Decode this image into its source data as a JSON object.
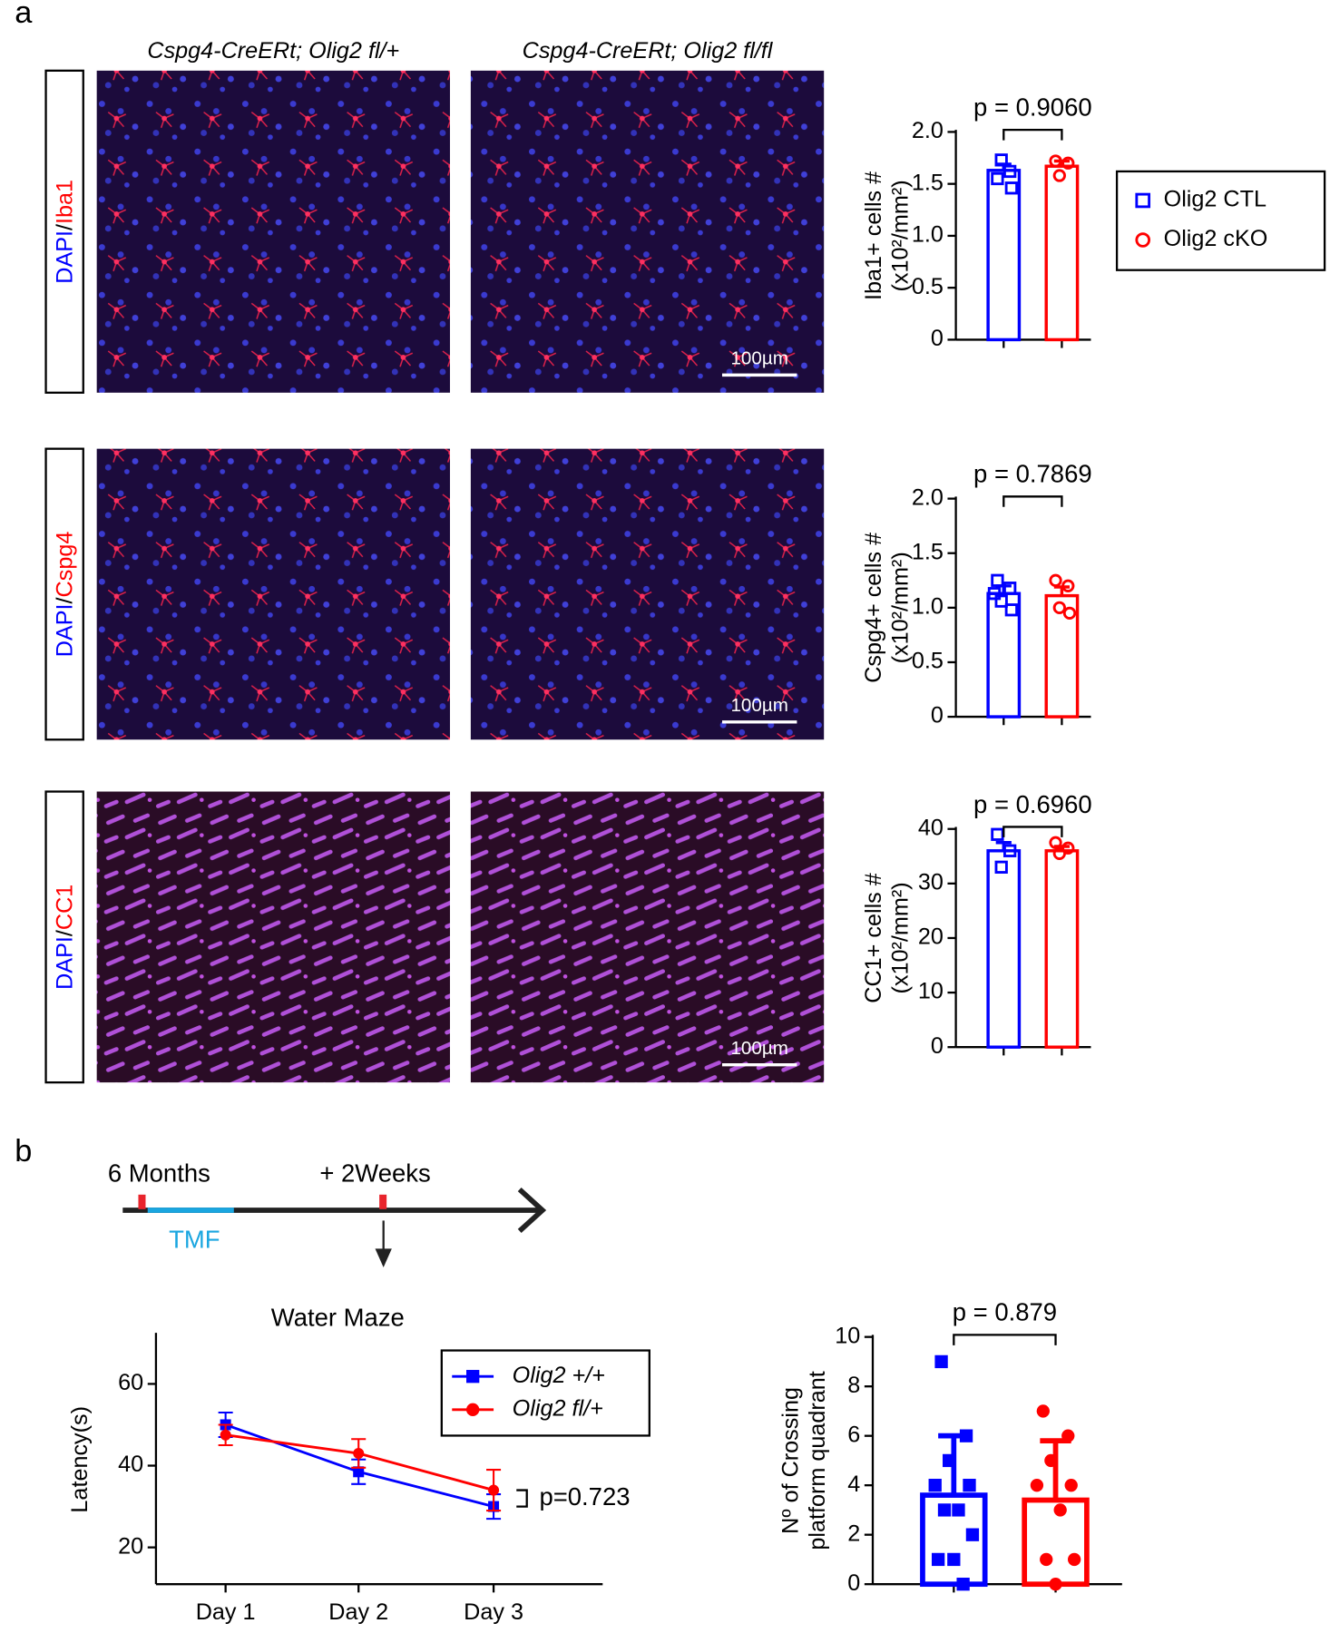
{
  "panel_labels": [
    "a",
    "b"
  ],
  "panel_a": {
    "columns": [
      "Cspg4-CreERt; Olig2 fl/+",
      "Cspg4-CreERt; Olig2 fl/fl"
    ],
    "rows": [
      [
        "DAPI",
        "/",
        "Iba1"
      ],
      [
        "DAPI",
        "/",
        "Cspg4"
      ],
      [
        "DAPI",
        "/",
        "CC1"
      ]
    ],
    "scale_bar": "100µm"
  },
  "timeline": {
    "start": "6 Months",
    "later": "+ 2Weeks",
    "treatment": "TMF"
  },
  "chart_data": [
    {
      "type": "bar",
      "ylabel": [
        "Iba1+ cells #",
        "(x10²/mm²)"
      ],
      "annotation": "p = 0.9060",
      "ylim": [
        0,
        2
      ],
      "yticks": [
        0,
        0.5,
        {
          "value": 1,
          "label": "1.0"
        },
        1.5,
        {
          "value": 2,
          "label": "2.0"
        }
      ],
      "legend": "right",
      "series": [
        {
          "name": "Olig2 CTL",
          "color": "#0000ff",
          "marker": "open-square",
          "values": [
            1.63
          ],
          "error": [
            0.06
          ],
          "points": [
            1.55,
            1.62,
            1.73,
            1.46
          ]
        },
        {
          "name": "Olig2 cKO",
          "color": "#ff0000",
          "marker": "open-circle",
          "values": [
            1.67
          ],
          "error": [
            0.05
          ],
          "points": [
            1.72,
            1.7,
            1.58
          ]
        }
      ]
    },
    {
      "type": "bar",
      "ylabel": [
        "Cspg4+ cells #",
        "(x10²/mm²)"
      ],
      "annotation": "p = 0.7869",
      "ylim": [
        0,
        2
      ],
      "yticks": [
        0,
        0.5,
        {
          "value": 1,
          "label": "1.0"
        },
        1.5,
        {
          "value": 2,
          "label": "2.0"
        }
      ],
      "series": [
        {
          "color": "#0000ff",
          "marker": "open-square",
          "values": [
            1.13
          ],
          "error": [
            0.07
          ],
          "points": [
            1.25,
            1.18,
            1.06,
            0.98,
            1.13
          ]
        },
        {
          "color": "#ff0000",
          "marker": "open-circle",
          "values": [
            1.11
          ],
          "error": [
            0.08
          ],
          "points": [
            1.25,
            1.2,
            1.0,
            0.95
          ]
        }
      ]
    },
    {
      "type": "bar",
      "ylabel": [
        "CC1+ cells #",
        "(x10²/mm²)"
      ],
      "annotation": "p = 0.6960",
      "ylim": [
        0,
        40
      ],
      "yticks": [
        0,
        10,
        20,
        30,
        40
      ],
      "series": [
        {
          "color": "#0000ff",
          "marker": "open-square",
          "values": [
            36
          ],
          "error": [
            1.5
          ],
          "points": [
            39,
            36,
            33
          ]
        },
        {
          "color": "#ff0000",
          "marker": "open-circle",
          "values": [
            36
          ],
          "error": [
            0.8
          ],
          "points": [
            37.5,
            36.5,
            35.5
          ]
        }
      ]
    },
    {
      "type": "line",
      "title": "Water Maze",
      "ylabel": [
        "Latency(s)"
      ],
      "annotation": "p=0.723",
      "categories": [
        "Day 1",
        "Day 2",
        "Day 3"
      ],
      "ylim": [
        11,
        72
      ],
      "yticks": [
        20,
        40,
        60
      ],
      "legend": "upper right",
      "series": [
        {
          "name": "Olig2 +/+",
          "color": "#0000ff",
          "marker": "filled-square",
          "values": [
            50,
            38.5,
            30
          ],
          "error": [
            3,
            3,
            3
          ]
        },
        {
          "name": "Olig2 fl/+",
          "color": "#ff0000",
          "marker": "filled-circle",
          "values": [
            47.5,
            43,
            34
          ],
          "error": [
            2.5,
            3.5,
            5
          ]
        }
      ]
    },
    {
      "type": "bar",
      "ylabel": [
        "Nº of Crossing",
        "platform quadrant"
      ],
      "annotation": "p = 0.879",
      "ylim": [
        0,
        10
      ],
      "yticks": [
        0,
        2,
        4,
        6,
        8,
        10
      ],
      "series": [
        {
          "color": "#0000ff",
          "marker": "filled-square",
          "values": [
            3.6
          ],
          "error": [
            2.4
          ],
          "points": [
            9,
            6,
            5,
            4,
            4,
            3,
            3,
            2,
            1,
            1,
            0
          ]
        },
        {
          "color": "#ff0000",
          "marker": "filled-circle",
          "values": [
            3.4
          ],
          "error": [
            2.4
          ],
          "points": [
            7,
            6,
            5,
            4,
            4,
            3,
            1,
            1,
            0
          ]
        }
      ]
    }
  ]
}
